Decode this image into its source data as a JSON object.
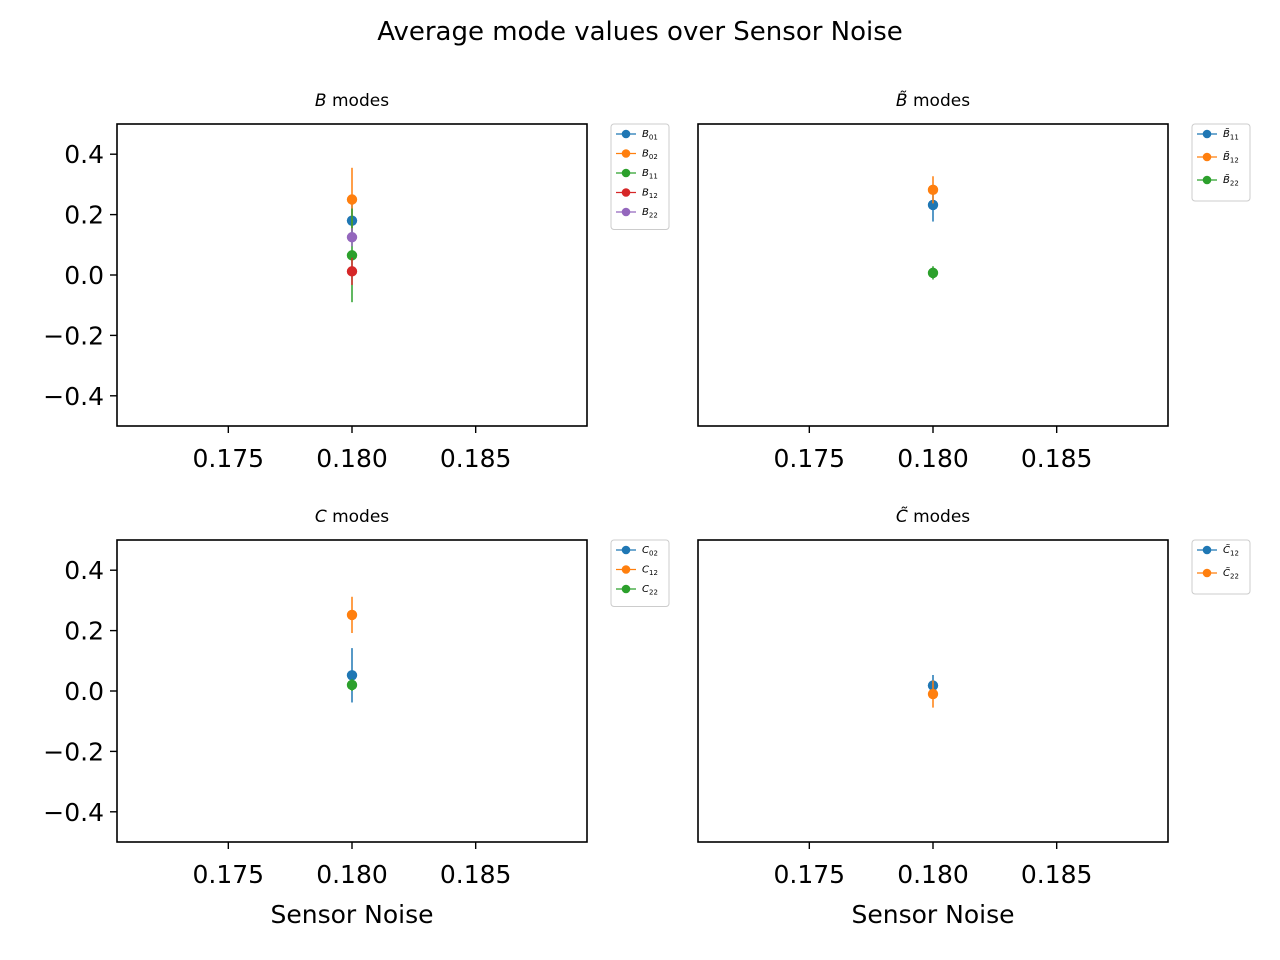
{
  "suptitle": "Average mode values over Sensor Noise",
  "colors": {
    "blue": "#1f77b4",
    "orange": "#ff7f0e",
    "green": "#2ca02c",
    "red": "#d62728",
    "purple": "#9467bd"
  },
  "chart_data": [
    {
      "type": "scatter",
      "title": {
        "sym": "B",
        "tilde": false,
        "text": " modes"
      },
      "xlabel": "",
      "xlim": [
        0.1705,
        0.1895
      ],
      "ylim": [
        -0.5,
        0.5
      ],
      "xticks": [
        "0.175",
        "0.180",
        "0.185"
      ],
      "yticks": [
        "0.4",
        "0.2",
        "0.0",
        "−0.2",
        "−0.4"
      ],
      "show_yticks": true,
      "legend_position": "outside-right",
      "series": [
        {
          "name": {
            "base": "B",
            "sub": "01",
            "tilde": false
          },
          "color": "#1f77b4",
          "x": 0.18,
          "y": 0.18,
          "err": 0.06
        },
        {
          "name": {
            "base": "B",
            "sub": "02",
            "tilde": false
          },
          "color": "#ff7f0e",
          "x": 0.18,
          "y": 0.25,
          "err": 0.105
        },
        {
          "name": {
            "base": "B",
            "sub": "11",
            "tilde": false
          },
          "color": "#2ca02c",
          "x": 0.18,
          "y": 0.065,
          "err": 0.155
        },
        {
          "name": {
            "base": "B",
            "sub": "12",
            "tilde": false
          },
          "color": "#d62728",
          "x": 0.18,
          "y": 0.012,
          "err": 0.045
        },
        {
          "name": {
            "base": "B",
            "sub": "22",
            "tilde": false
          },
          "color": "#9467bd",
          "x": 0.18,
          "y": 0.125,
          "err": 0.03
        }
      ]
    },
    {
      "type": "scatter",
      "title": {
        "sym": "B",
        "tilde": true,
        "text": " modes"
      },
      "xlabel": "",
      "xlim": [
        0.1705,
        0.1895
      ],
      "ylim": [
        -0.5,
        0.5
      ],
      "xticks": [
        "0.175",
        "0.180",
        "0.185"
      ],
      "yticks": [],
      "show_yticks": false,
      "legend_position": "outside-right",
      "series": [
        {
          "name": {
            "base": "B",
            "sub": "11",
            "tilde": true
          },
          "color": "#1f77b4",
          "x": 0.18,
          "y": 0.232,
          "err": 0.055
        },
        {
          "name": {
            "base": "B",
            "sub": "12",
            "tilde": true
          },
          "color": "#ff7f0e",
          "x": 0.18,
          "y": 0.282,
          "err": 0.045
        },
        {
          "name": {
            "base": "B",
            "sub": "22",
            "tilde": true
          },
          "color": "#2ca02c",
          "x": 0.18,
          "y": 0.007,
          "err": 0.022
        }
      ]
    },
    {
      "type": "scatter",
      "title": {
        "sym": "C",
        "tilde": false,
        "text": " modes"
      },
      "xlabel": "Sensor Noise",
      "xlim": [
        0.1705,
        0.1895
      ],
      "ylim": [
        -0.5,
        0.5
      ],
      "xticks": [
        "0.175",
        "0.180",
        "0.185"
      ],
      "yticks": [
        "0.4",
        "0.2",
        "0.0",
        "−0.2",
        "−0.4"
      ],
      "show_yticks": true,
      "legend_position": "outside-right",
      "series": [
        {
          "name": {
            "base": "C",
            "sub": "02",
            "tilde": false
          },
          "color": "#1f77b4",
          "x": 0.18,
          "y": 0.052,
          "err": 0.09
        },
        {
          "name": {
            "base": "C",
            "sub": "12",
            "tilde": false
          },
          "color": "#ff7f0e",
          "x": 0.18,
          "y": 0.252,
          "err": 0.06
        },
        {
          "name": {
            "base": "C",
            "sub": "22",
            "tilde": false
          },
          "color": "#2ca02c",
          "x": 0.18,
          "y": 0.02,
          "err": 0.02
        }
      ]
    },
    {
      "type": "scatter",
      "title": {
        "sym": "C",
        "tilde": true,
        "text": " modes"
      },
      "xlabel": "Sensor Noise",
      "xlim": [
        0.1705,
        0.1895
      ],
      "ylim": [
        -0.5,
        0.5
      ],
      "xticks": [
        "0.175",
        "0.180",
        "0.185"
      ],
      "yticks": [],
      "show_yticks": false,
      "legend_position": "outside-right",
      "series": [
        {
          "name": {
            "base": "C",
            "sub": "12",
            "tilde": true
          },
          "color": "#1f77b4",
          "x": 0.18,
          "y": 0.018,
          "err": 0.035
        },
        {
          "name": {
            "base": "C",
            "sub": "22",
            "tilde": true
          },
          "color": "#ff7f0e",
          "x": 0.18,
          "y": -0.01,
          "err": 0.045
        }
      ]
    }
  ]
}
